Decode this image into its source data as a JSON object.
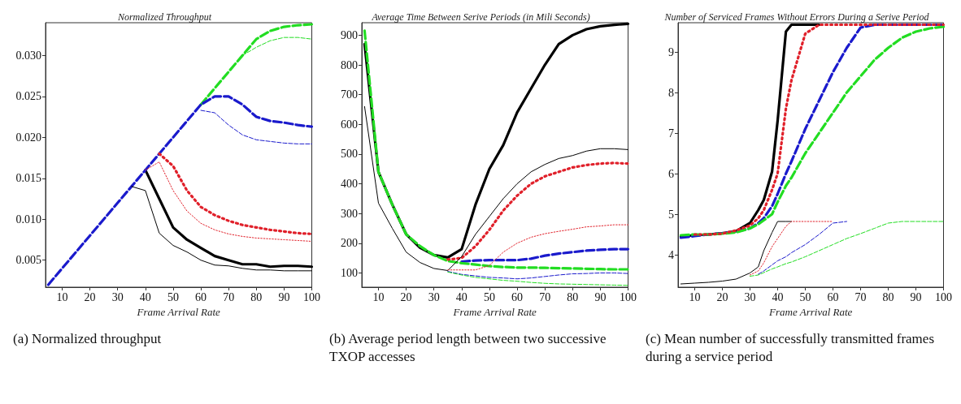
{
  "chart_data": [
    {
      "type": "line",
      "title": "Normalized Throughput",
      "xlabel": "Frame Arrival Rate",
      "annotations": [
        "(a) Normalized throughput"
      ],
      "x": [
        5,
        10,
        15,
        20,
        25,
        30,
        35,
        40,
        45,
        50,
        55,
        60,
        65,
        70,
        75,
        80,
        85,
        90,
        95,
        100
      ],
      "xlim": [
        4,
        100
      ],
      "xticks": [
        10,
        20,
        30,
        40,
        50,
        60,
        70,
        80,
        90,
        100
      ],
      "ylim": [
        0.0017,
        0.034
      ],
      "yticks": [
        {
          "value": 0.005,
          "label": "0.005"
        },
        {
          "value": 0.01,
          "label": "0.010"
        },
        {
          "value": 0.015,
          "label": "0.015"
        },
        {
          "value": 0.02,
          "label": "0.020"
        },
        {
          "value": 0.025,
          "label": "0.025"
        },
        {
          "value": 0.03,
          "label": "0.030"
        }
      ],
      "series": [
        {
          "color": "#000000",
          "line_style": "solid",
          "values": [
            null,
            null,
            null,
            null,
            null,
            null,
            null,
            0.016,
            0.0125,
            0.009,
            0.0075,
            0.0065,
            0.0055,
            0.005,
            0.0045,
            0.0045,
            0.0042,
            0.0043,
            0.0043,
            0.0042
          ]
        },
        {
          "color": "#e0202a",
          "line_style": "dotted",
          "values": [
            null,
            null,
            null,
            null,
            null,
            null,
            null,
            null,
            0.018,
            0.0165,
            0.0135,
            0.0115,
            0.0105,
            0.0098,
            0.0093,
            0.009,
            0.0087,
            0.0085,
            0.0083,
            0.0082
          ]
        },
        {
          "color": "#22dd22",
          "line_style": "dashed",
          "values": [
            null,
            null,
            null,
            null,
            null,
            null,
            null,
            null,
            null,
            null,
            null,
            0.024,
            0.026,
            0.028,
            0.03,
            0.032,
            0.033,
            0.0335,
            0.0337,
            0.0338
          ]
        },
        {
          "color": "#1a1acc",
          "line_style": "dashed",
          "values": [
            0.002,
            0.004,
            0.006,
            0.008,
            0.01,
            0.012,
            0.014,
            0.016,
            0.018,
            0.02,
            0.022,
            0.024,
            0.025,
            0.025,
            0.024,
            0.0225,
            0.022,
            0.0218,
            0.0215,
            0.0213
          ]
        },
        {
          "color": "#000000",
          "line_style": "solid",
          "values": [
            null,
            null,
            null,
            null,
            null,
            null,
            0.014,
            0.0135,
            0.0083,
            0.0068,
            0.006,
            0.005,
            0.0044,
            0.0043,
            0.004,
            0.0038,
            0.0038,
            0.0037,
            0.0037,
            0.0037
          ]
        },
        {
          "color": "#e0202a",
          "line_style": "dotted",
          "values": [
            null,
            null,
            null,
            null,
            null,
            null,
            null,
            0.016,
            0.017,
            0.0135,
            0.011,
            0.0095,
            0.0087,
            0.0082,
            0.0079,
            0.0077,
            0.0076,
            0.0075,
            0.0074,
            0.0073
          ]
        },
        {
          "color": "#1a1acc",
          "line_style": "dashed",
          "values": [
            null,
            null,
            null,
            null,
            null,
            null,
            null,
            null,
            null,
            null,
            null,
            0.0233,
            0.023,
            0.0215,
            0.0203,
            0.0197,
            0.0195,
            0.0193,
            0.0192,
            0.0192
          ]
        },
        {
          "color": "#22dd22",
          "line_style": "dashed",
          "values": [
            null,
            null,
            null,
            null,
            null,
            null,
            null,
            null,
            null,
            null,
            null,
            null,
            null,
            null,
            0.03,
            0.031,
            0.0318,
            0.0322,
            0.0322,
            0.032
          ]
        }
      ]
    },
    {
      "type": "line",
      "title": "Average Time Between Serive Periods (in Mili Seconds)",
      "xlabel": "Frame Arrival Rate",
      "annotations": [
        "(b) Average period length between two successive TXOP accesses"
      ],
      "x": [
        5,
        10,
        15,
        20,
        25,
        30,
        35,
        40,
        45,
        50,
        55,
        60,
        65,
        70,
        75,
        80,
        85,
        90,
        95,
        100
      ],
      "xlim": [
        4,
        100
      ],
      "xticks": [
        10,
        20,
        30,
        40,
        50,
        60,
        70,
        80,
        90,
        100
      ],
      "ylim": [
        52,
        942
      ],
      "yticks": [
        100,
        200,
        300,
        400,
        500,
        600,
        700,
        800,
        900
      ],
      "series": [
        {
          "color": "#000000",
          "line_style": "solid",
          "values": [
            870,
            440,
            330,
            230,
            185,
            160,
            152,
            180,
            330,
            450,
            530,
            640,
            720,
            800,
            870,
            900,
            920,
            930,
            935,
            938
          ]
        },
        {
          "color": "#e0202a",
          "line_style": "dotted",
          "values": [
            null,
            null,
            null,
            null,
            null,
            null,
            145,
            150,
            190,
            245,
            310,
            360,
            400,
            425,
            440,
            455,
            463,
            468,
            470,
            468
          ]
        },
        {
          "color": "#1a1acc",
          "line_style": "dashed",
          "values": [
            null,
            null,
            null,
            null,
            null,
            null,
            null,
            138,
            142,
            143,
            143,
            143,
            148,
            158,
            165,
            170,
            175,
            178,
            180,
            180
          ]
        },
        {
          "color": "#22dd22",
          "line_style": "dashed",
          "values": [
            915,
            440,
            330,
            230,
            190,
            160,
            140,
            133,
            128,
            123,
            120,
            118,
            118,
            117,
            116,
            115,
            114,
            113,
            112,
            112
          ]
        },
        {
          "color": "#000000",
          "line_style": "solid",
          "values": [
            660,
            335,
            250,
            170,
            135,
            115,
            108,
            155,
            230,
            290,
            350,
            400,
            440,
            465,
            485,
            495,
            510,
            518,
            518,
            515
          ]
        },
        {
          "color": "#e0202a",
          "line_style": "dotted",
          "values": [
            null,
            null,
            null,
            null,
            null,
            null,
            110,
            110,
            110,
            125,
            170,
            200,
            220,
            232,
            240,
            247,
            255,
            258,
            262,
            262
          ]
        },
        {
          "color": "#1a1acc",
          "line_style": "dashed",
          "values": [
            null,
            null,
            null,
            null,
            null,
            null,
            105,
            95,
            90,
            85,
            83,
            80,
            83,
            88,
            93,
            97,
            98,
            100,
            100,
            98
          ]
        },
        {
          "color": "#22dd22",
          "line_style": "dashed",
          "values": [
            null,
            null,
            null,
            null,
            null,
            null,
            103,
            93,
            85,
            80,
            75,
            72,
            68,
            65,
            63,
            62,
            61,
            60,
            59,
            58
          ]
        }
      ]
    },
    {
      "type": "line",
      "title": "Number of Serviced Frames Without Errors During a Serive Period",
      "xlabel": "Frame Arrival Rate",
      "annotations": [
        "(c) Mean number of successfully transmitted frames during a service period"
      ],
      "x": [
        5,
        10,
        15,
        20,
        25,
        30,
        33,
        35,
        38,
        40,
        43,
        45,
        50,
        55,
        60,
        65,
        70,
        75,
        80,
        85,
        90,
        95,
        100
      ],
      "xlim": [
        4,
        100
      ],
      "xticks": [
        10,
        20,
        30,
        40,
        50,
        60,
        70,
        80,
        90,
        100
      ],
      "ylim": [
        3.2,
        9.72
      ],
      "yticks": [
        4,
        5,
        6,
        7,
        8,
        9
      ],
      "series": [
        {
          "color": "#000000",
          "line_style": "solid",
          "values": [
            4.45,
            4.48,
            4.5,
            4.53,
            4.58,
            4.78,
            5.1,
            5.35,
            6.05,
            7.3,
            9.5,
            9.67,
            9.67,
            9.67,
            null,
            null,
            null,
            null,
            null,
            null,
            null,
            null,
            null
          ]
        },
        {
          "color": "#e0202a",
          "line_style": "dotted",
          "values": [
            null,
            4.5,
            4.5,
            4.52,
            4.6,
            4.72,
            4.9,
            5.1,
            5.6,
            6.0,
            7.6,
            8.3,
            9.45,
            9.67,
            9.67,
            9.67,
            9.67,
            9.67,
            9.67,
            9.67,
            9.67,
            9.67,
            9.67
          ]
        },
        {
          "color": "#1a1acc",
          "line_style": "dashed",
          "values": [
            4.42,
            4.46,
            4.5,
            4.53,
            4.57,
            4.65,
            4.78,
            4.9,
            5.2,
            5.5,
            6.0,
            6.3,
            7.1,
            7.8,
            8.5,
            9.1,
            9.6,
            9.67,
            9.67,
            9.67,
            9.67,
            9.67,
            9.67
          ]
        },
        {
          "color": "#22dd22",
          "line_style": "dashed",
          "values": [
            4.48,
            4.5,
            4.5,
            4.52,
            4.55,
            4.65,
            4.75,
            4.85,
            5.0,
            5.3,
            5.7,
            5.9,
            6.5,
            7.0,
            7.5,
            8.0,
            8.4,
            8.8,
            9.1,
            9.35,
            9.5,
            9.58,
            9.62
          ]
        },
        {
          "color": "#000000",
          "line_style": "solid",
          "values": [
            3.28,
            3.3,
            3.32,
            3.35,
            3.4,
            3.55,
            3.7,
            4.1,
            4.55,
            4.82,
            4.82,
            4.82,
            null,
            null,
            null,
            null,
            null,
            null,
            null,
            null,
            null,
            null,
            null
          ]
        },
        {
          "color": "#e0202a",
          "line_style": "dotted",
          "values": [
            null,
            null,
            null,
            null,
            null,
            3.5,
            3.6,
            3.8,
            4.2,
            4.4,
            4.7,
            4.82,
            4.82,
            4.82,
            4.82,
            null,
            null,
            null,
            null,
            null,
            null,
            null,
            null
          ]
        },
        {
          "color": "#1a1acc",
          "line_style": "dashed",
          "values": [
            null,
            null,
            null,
            null,
            null,
            null,
            3.52,
            3.6,
            3.75,
            3.85,
            3.95,
            4.05,
            4.25,
            4.5,
            4.78,
            4.82,
            null,
            null,
            null,
            null,
            null,
            null,
            null
          ]
        },
        {
          "color": "#22dd22",
          "line_style": "dashed",
          "values": [
            null,
            null,
            null,
            null,
            null,
            3.47,
            3.5,
            3.56,
            3.65,
            3.7,
            3.78,
            3.82,
            3.95,
            4.1,
            4.25,
            4.4,
            4.52,
            4.65,
            4.78,
            4.82,
            4.82,
            4.82,
            4.82
          ]
        }
      ]
    }
  ]
}
